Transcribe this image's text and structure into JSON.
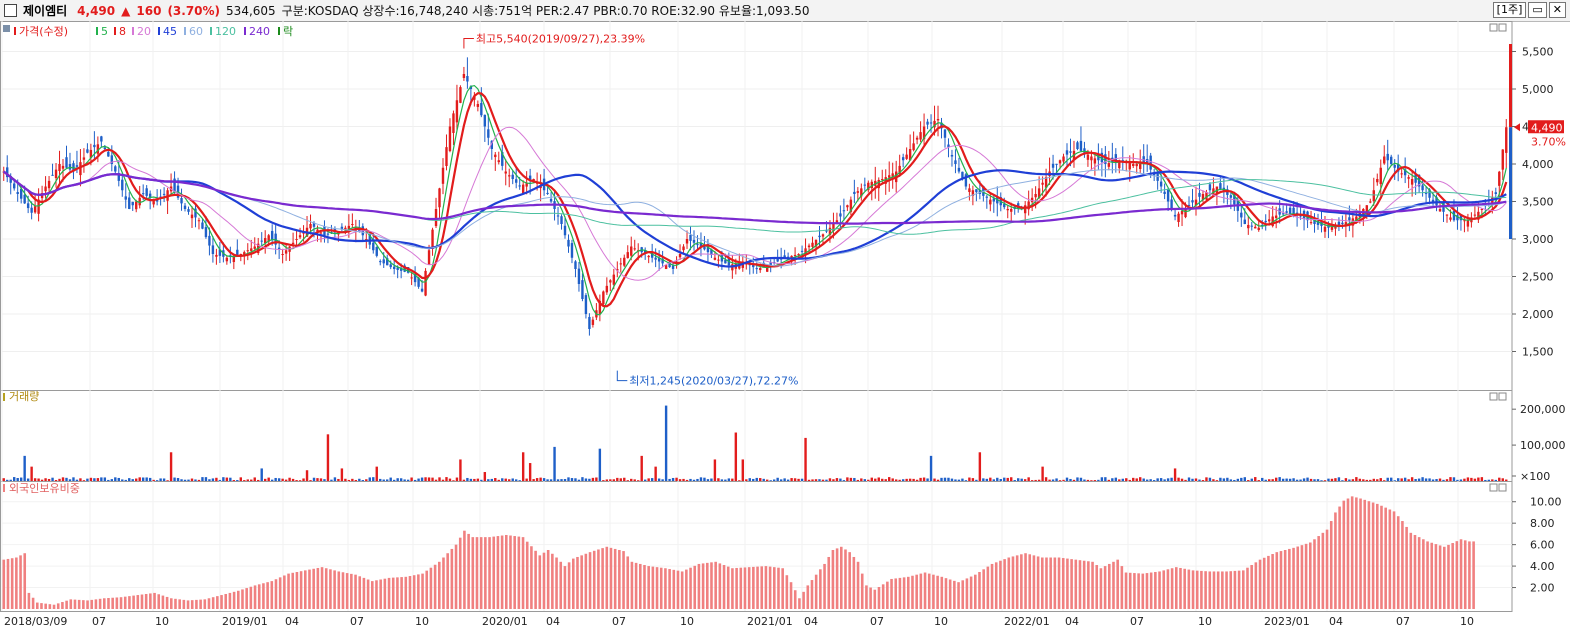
{
  "header": {
    "stock_name": "제이엠티",
    "price": "4,490",
    "change_arrow": "▲",
    "change": "160",
    "change_pct": "(3.70%)",
    "volume": "534,605",
    "info": "구분:KOSDAQ  상장수:16,748,240  시총:751억  PER:2.47  PBR:0.70  ROE:32.90  유보율:1,093.50",
    "period_button": "[1주]",
    "btn_restore": "▭",
    "btn_close": "✕"
  },
  "chart_data": [
    {
      "type": "candlestick",
      "panel": "price",
      "legend": [
        {
          "label": "가격(수정)",
          "color": "#e21c1c"
        },
        {
          "label": "5",
          "color": "#22b14c"
        },
        {
          "label": "8",
          "color": "#e21c1c"
        },
        {
          "label": "20",
          "color": "#d679d6"
        },
        {
          "label": "45",
          "color": "#1f3fd6"
        },
        {
          "label": "60",
          "color": "#8fb0e0"
        },
        {
          "label": "120",
          "color": "#4cc0a0"
        },
        {
          "label": "240",
          "color": "#7a2ad0"
        },
        {
          "label": "락",
          "color": "#1a8a1a"
        }
      ],
      "y_ticks": [
        "1,500",
        "2,000",
        "2,500",
        "3,000",
        "3,500",
        "4,000",
        "4,500",
        "5,000",
        "5,500"
      ],
      "ylim": [
        1000,
        5800
      ],
      "x_ticks": [
        "2018/03/09",
        "07",
        "10",
        "2019/01",
        "04",
        "07",
        "10",
        "2020/01",
        "04",
        "07",
        "10",
        "2021/01",
        "04",
        "07",
        "10",
        "2022/01",
        "04",
        "07",
        "10",
        "2023/01",
        "04",
        "07",
        "10"
      ],
      "annotations": [
        {
          "text": "최고5,540(2019/09/27),23.39%",
          "value": 5540
        },
        {
          "text": "최저1,245(2020/03/27),72.27%",
          "value": 1245
        }
      ],
      "last_price_label": "4,490",
      "last_change_label": "3.70%",
      "close_points": [
        [
          0,
          3900
        ],
        [
          4,
          3600
        ],
        [
          8,
          3350
        ],
        [
          12,
          3700
        ],
        [
          16,
          4000
        ],
        [
          20,
          3900
        ],
        [
          24,
          4150
        ],
        [
          28,
          4300
        ],
        [
          32,
          3900
        ],
        [
          36,
          3400
        ],
        [
          40,
          3600
        ],
        [
          44,
          3500
        ],
        [
          48,
          3700
        ],
        [
          52,
          3400
        ],
        [
          56,
          3250
        ],
        [
          60,
          2800
        ],
        [
          64,
          2750
        ],
        [
          68,
          2800
        ],
        [
          72,
          2900
        ],
        [
          76,
          3050
        ],
        [
          80,
          2800
        ],
        [
          84,
          3000
        ],
        [
          88,
          3200
        ],
        [
          92,
          3050
        ],
        [
          96,
          3100
        ],
        [
          100,
          3200
        ],
        [
          104,
          3000
        ],
        [
          108,
          2700
        ],
        [
          112,
          2600
        ],
        [
          116,
          2550
        ],
        [
          120,
          2300
        ],
        [
          124,
          3400
        ],
        [
          128,
          4500
        ],
        [
          132,
          5200
        ],
        [
          136,
          4800
        ],
        [
          140,
          4200
        ],
        [
          144,
          3900
        ],
        [
          148,
          3700
        ],
        [
          152,
          3800
        ],
        [
          156,
          3600
        ],
        [
          160,
          3200
        ],
        [
          164,
          2600
        ],
        [
          168,
          1800
        ],
        [
          172,
          2300
        ],
        [
          176,
          2600
        ],
        [
          180,
          2900
        ],
        [
          184,
          2800
        ],
        [
          188,
          2700
        ],
        [
          192,
          2600
        ],
        [
          196,
          3000
        ],
        [
          200,
          2900
        ],
        [
          204,
          2750
        ],
        [
          208,
          2650
        ],
        [
          212,
          2700
        ],
        [
          216,
          2600
        ],
        [
          220,
          2650
        ],
        [
          224,
          2750
        ],
        [
          228,
          2800
        ],
        [
          232,
          2950
        ],
        [
          236,
          3100
        ],
        [
          240,
          3300
        ],
        [
          244,
          3600
        ],
        [
          248,
          3750
        ],
        [
          252,
          3800
        ],
        [
          256,
          3900
        ],
        [
          260,
          4200
        ],
        [
          264,
          4500
        ],
        [
          268,
          4600
        ],
        [
          272,
          4100
        ],
        [
          276,
          3700
        ],
        [
          280,
          3600
        ],
        [
          284,
          3500
        ],
        [
          288,
          3400
        ],
        [
          292,
          3400
        ],
        [
          296,
          3600
        ],
        [
          300,
          3900
        ],
        [
          304,
          4100
        ],
        [
          308,
          4200
        ],
        [
          312,
          4100
        ],
        [
          316,
          4000
        ],
        [
          320,
          4050
        ],
        [
          324,
          4000
        ],
        [
          328,
          4000
        ],
        [
          332,
          3700
        ],
        [
          336,
          3300
        ],
        [
          340,
          3450
        ],
        [
          344,
          3600
        ],
        [
          348,
          3700
        ],
        [
          352,
          3550
        ],
        [
          356,
          3200
        ],
        [
          360,
          3150
        ],
        [
          364,
          3300
        ],
        [
          368,
          3350
        ],
        [
          372,
          3300
        ],
        [
          376,
          3200
        ],
        [
          380,
          3150
        ],
        [
          384,
          3200
        ],
        [
          388,
          3300
        ],
        [
          392,
          3500
        ],
        [
          396,
          4100
        ],
        [
          400,
          3900
        ],
        [
          404,
          3800
        ],
        [
          408,
          3600
        ],
        [
          412,
          3400
        ],
        [
          416,
          3250
        ],
        [
          420,
          3250
        ],
        [
          424,
          3400
        ],
        [
          428,
          3600
        ],
        [
          431,
          4490
        ]
      ]
    },
    {
      "type": "bar",
      "panel": "volume",
      "title": "거래량",
      "y_ticks": [
        "×100",
        "100,000",
        "200,000"
      ],
      "ylim": [
        0,
        220000
      ],
      "colors": {
        "up": "#e21c1c",
        "down": "#1e5fc8"
      },
      "spikes": [
        [
          6,
          70000,
          "down"
        ],
        [
          8,
          40000,
          "up"
        ],
        [
          48,
          80000,
          "up"
        ],
        [
          74,
          35000,
          "down"
        ],
        [
          87,
          30000,
          "up"
        ],
        [
          93,
          130000,
          "up"
        ],
        [
          97,
          35000,
          "up"
        ],
        [
          107,
          40000,
          "up"
        ],
        [
          131,
          60000,
          "up"
        ],
        [
          138,
          25000,
          "up"
        ],
        [
          149,
          80000,
          "up"
        ],
        [
          151,
          50000,
          "up"
        ],
        [
          158,
          95000,
          "down"
        ],
        [
          171,
          90000,
          "down"
        ],
        [
          183,
          70000,
          "up"
        ],
        [
          190,
          210000,
          "down"
        ],
        [
          187,
          40000,
          "up"
        ],
        [
          204,
          60000,
          "up"
        ],
        [
          210,
          135000,
          "up"
        ],
        [
          212,
          60000,
          "up"
        ],
        [
          230,
          120000,
          "up"
        ],
        [
          266,
          70000,
          "down"
        ],
        [
          280,
          80000,
          "up"
        ],
        [
          298,
          40000,
          "up"
        ],
        [
          336,
          35000,
          "up"
        ]
      ]
    },
    {
      "type": "bar",
      "panel": "foreign",
      "title": "외국인보유비중",
      "y_ticks": [
        "2.00",
        "4.00",
        "6.00",
        "8.00",
        "10.00"
      ],
      "ylim": [
        0,
        11
      ],
      "color": "#f08080",
      "points": [
        [
          0,
          4.6
        ],
        [
          3,
          4.8
        ],
        [
          5,
          5.2
        ],
        [
          6,
          1.5
        ],
        [
          8,
          0.6
        ],
        [
          12,
          0.4
        ],
        [
          16,
          0.9
        ],
        [
          20,
          0.8
        ],
        [
          24,
          1.0
        ],
        [
          28,
          1.1
        ],
        [
          32,
          1.3
        ],
        [
          36,
          1.5
        ],
        [
          40,
          1.0
        ],
        [
          44,
          0.8
        ],
        [
          48,
          0.9
        ],
        [
          52,
          1.3
        ],
        [
          56,
          1.7
        ],
        [
          60,
          2.2
        ],
        [
          64,
          2.6
        ],
        [
          68,
          3.3
        ],
        [
          72,
          3.6
        ],
        [
          76,
          3.9
        ],
        [
          80,
          3.5
        ],
        [
          84,
          3.2
        ],
        [
          88,
          2.6
        ],
        [
          92,
          2.9
        ],
        [
          96,
          3.0
        ],
        [
          100,
          3.3
        ],
        [
          104,
          4.4
        ],
        [
          108,
          6.0
        ],
        [
          110,
          7.3
        ],
        [
          112,
          6.7
        ],
        [
          116,
          6.7
        ],
        [
          120,
          6.9
        ],
        [
          124,
          6.7
        ],
        [
          128,
          5.0
        ],
        [
          130,
          5.5
        ],
        [
          132,
          4.8
        ],
        [
          134,
          4.0
        ],
        [
          136,
          4.7
        ],
        [
          140,
          5.3
        ],
        [
          144,
          5.8
        ],
        [
          148,
          5.4
        ],
        [
          150,
          4.4
        ],
        [
          154,
          4.0
        ],
        [
          158,
          3.8
        ],
        [
          162,
          3.5
        ],
        [
          166,
          4.2
        ],
        [
          170,
          4.4
        ],
        [
          174,
          3.8
        ],
        [
          178,
          3.9
        ],
        [
          182,
          4.0
        ],
        [
          186,
          3.8
        ],
        [
          188,
          2.5
        ],
        [
          190,
          1.0
        ],
        [
          192,
          2.2
        ],
        [
          196,
          4.2
        ],
        [
          198,
          5.5
        ],
        [
          200,
          5.8
        ],
        [
          202,
          5.3
        ],
        [
          204,
          4.4
        ],
        [
          206,
          2.2
        ],
        [
          208,
          1.8
        ],
        [
          212,
          2.8
        ],
        [
          216,
          3.0
        ],
        [
          220,
          3.4
        ],
        [
          224,
          3.0
        ],
        [
          228,
          2.5
        ],
        [
          232,
          3.2
        ],
        [
          236,
          4.2
        ],
        [
          240,
          4.8
        ],
        [
          244,
          5.2
        ],
        [
          248,
          4.8
        ],
        [
          252,
          4.8
        ],
        [
          256,
          4.6
        ],
        [
          260,
          4.4
        ],
        [
          262,
          3.8
        ],
        [
          266,
          4.6
        ],
        [
          268,
          3.4
        ],
        [
          272,
          3.3
        ],
        [
          276,
          3.5
        ],
        [
          280,
          3.9
        ],
        [
          284,
          3.6
        ],
        [
          288,
          3.5
        ],
        [
          292,
          3.5
        ],
        [
          296,
          3.6
        ],
        [
          300,
          4.6
        ],
        [
          304,
          5.3
        ],
        [
          308,
          5.7
        ],
        [
          312,
          6.2
        ],
        [
          316,
          7.4
        ],
        [
          318,
          9.0
        ],
        [
          320,
          10.1
        ],
        [
          322,
          10.5
        ],
        [
          324,
          10.3
        ],
        [
          328,
          9.8
        ],
        [
          332,
          9.1
        ],
        [
          334,
          8.2
        ],
        [
          336,
          7.1
        ],
        [
          340,
          6.3
        ],
        [
          344,
          5.8
        ],
        [
          348,
          6.5
        ],
        [
          350,
          6.3
        ]
      ]
    }
  ]
}
